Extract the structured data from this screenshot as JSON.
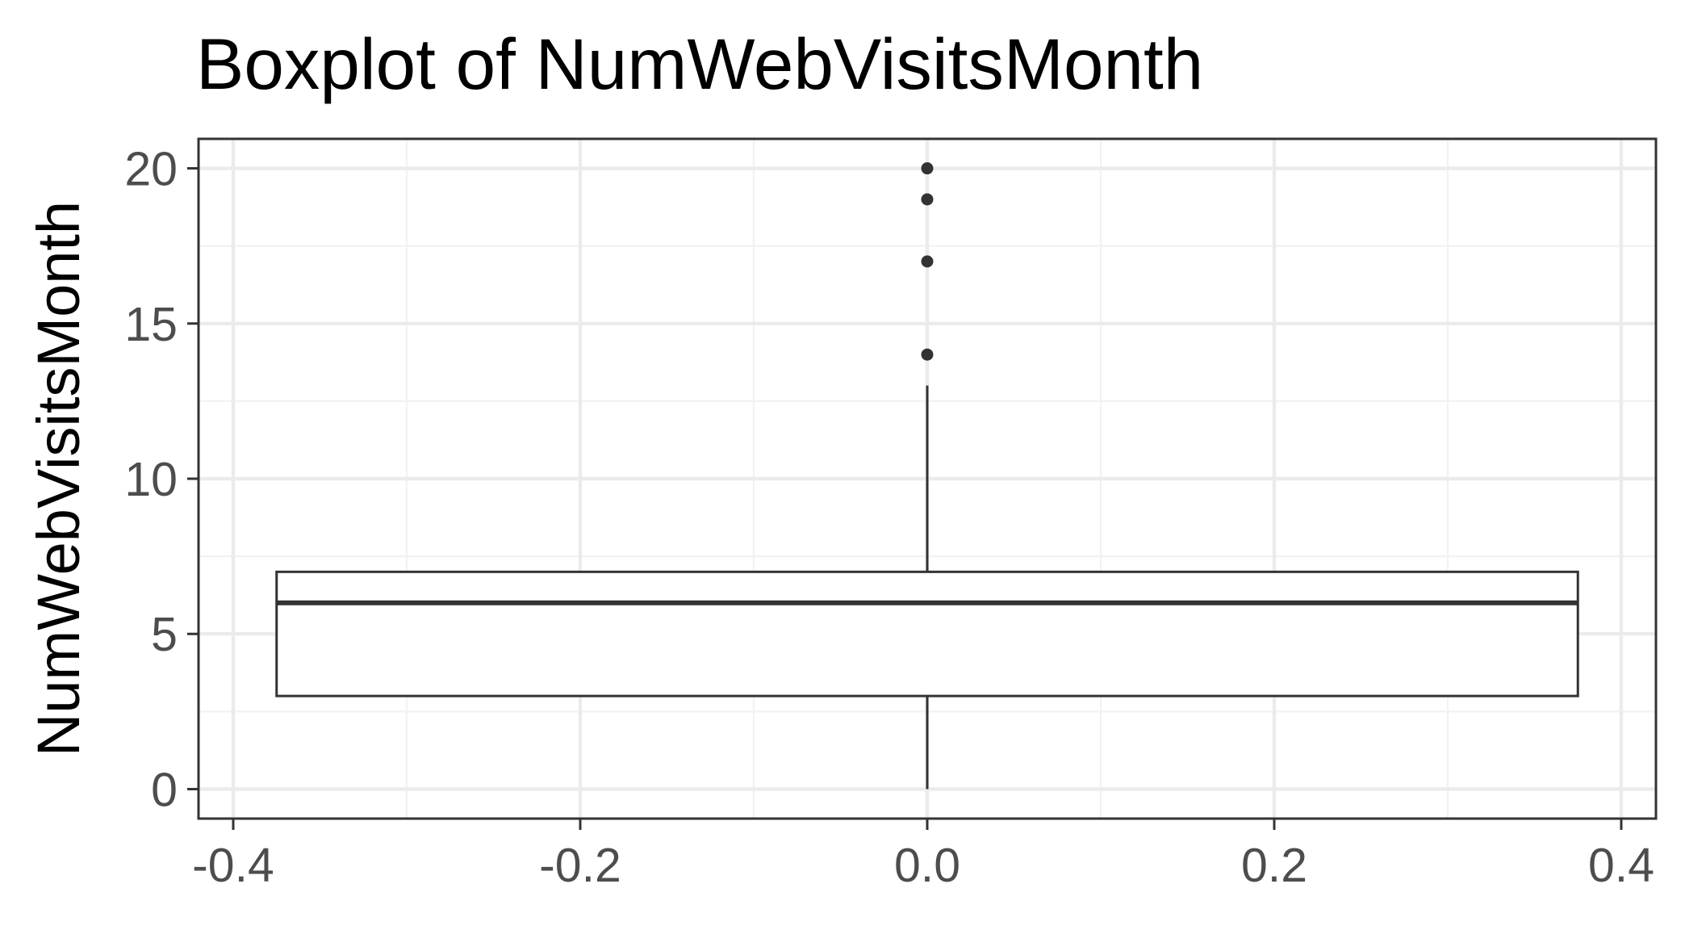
{
  "chart_data": {
    "type": "box",
    "title": "Boxplot of NumWebVisitsMonth",
    "xlabel": "",
    "ylabel": "NumWebVisitsMonth",
    "xlim": [
      -0.42,
      0.42
    ],
    "ylim": [
      -0.95,
      20.95
    ],
    "x_ticks": [
      -0.4,
      -0.2,
      0.0,
      0.2,
      0.4
    ],
    "x_tick_labels": [
      "-0.4",
      "-0.2",
      "0.0",
      "0.2",
      "0.4"
    ],
    "y_ticks": [
      0,
      5,
      10,
      15,
      20
    ],
    "y_tick_labels": [
      "0",
      "5",
      "10",
      "15",
      "20"
    ],
    "grid": true,
    "box": {
      "x_center": 0.0,
      "x_left": -0.375,
      "x_right": 0.375,
      "min": 0,
      "q1": 3,
      "median": 6,
      "q3": 7,
      "max": 13,
      "outliers": [
        14,
        17,
        19,
        20
      ]
    },
    "colors": {
      "box_fill": "#ffffff",
      "box_stroke": "#333333",
      "outlier": "#333333",
      "panel_border": "#333333",
      "grid_major": "#ebebeb",
      "grid_minor": "#f2f2f2",
      "tick_label": "#4d4d4d"
    }
  }
}
